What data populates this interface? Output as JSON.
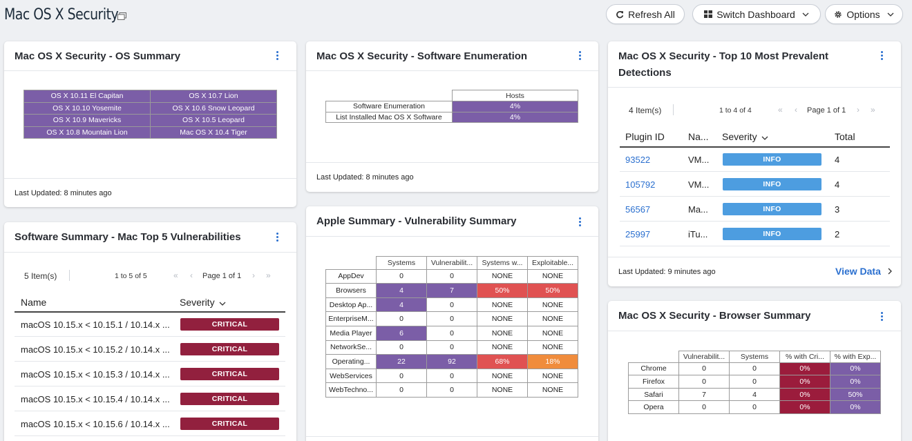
{
  "header": {
    "title": "Mac OS X Security",
    "refresh_label": "Refresh All",
    "switch_label": "Switch Dashboard",
    "options_label": "Options"
  },
  "os_summary": {
    "title": "Mac OS X Security - OS Summary",
    "rows": [
      [
        "OS X 10.11 El Capitan",
        "OS X 10.7 Lion"
      ],
      [
        "OS X 10.10 Yosemite",
        "OS X 10.6 Snow Leopard"
      ],
      [
        "OS X 10.9 Mavericks",
        "OS X 10.5 Leopard"
      ],
      [
        "OS X 10.8 Mountain Lion",
        "Mac OS X 10.4 Tiger"
      ]
    ],
    "footer": "Last Updated: 8 minutes ago"
  },
  "software_enum": {
    "title": "Mac OS X Security - Software Enumeration",
    "column": "Hosts",
    "rows": [
      {
        "label": "Software Enumeration",
        "value": "4%"
      },
      {
        "label": "List Installed Mac OS X Software",
        "value": "4%"
      }
    ],
    "footer": "Last Updated: 8 minutes ago"
  },
  "top10": {
    "title_line1": "Mac OS X Security - Top 10 Most Prevalent",
    "title_line2": "Detections",
    "item_count": "4 Item(s)",
    "range": "1 to 4 of 4",
    "page": "Page 1 of 1",
    "columns": [
      "Plugin ID",
      "Na...",
      "Severity",
      "Total"
    ],
    "rows": [
      {
        "id": "93522",
        "name": "VM...",
        "severity": "INFO",
        "total": "4"
      },
      {
        "id": "105792",
        "name": "VM...",
        "severity": "INFO",
        "total": "4"
      },
      {
        "id": "56567",
        "name": "Ma...",
        "severity": "INFO",
        "total": "3"
      },
      {
        "id": "25997",
        "name": "iTu...",
        "severity": "INFO",
        "total": "2"
      }
    ],
    "footer": "Last Updated: 9 minutes ago",
    "view_data": "View Data"
  },
  "sw_summary": {
    "title": "Software Summary - Mac Top 5 Vulnerabilities",
    "item_count": "5 Item(s)",
    "range": "1 to 5 of 5",
    "page": "Page 1 of 1",
    "columns": [
      "Name",
      "Severity"
    ],
    "rows": [
      {
        "name": "macOS 10.15.x < 10.15.1 / 10.14.x ...",
        "severity": "CRITICAL"
      },
      {
        "name": "macOS 10.15.x < 10.15.2 / 10.14.x ...",
        "severity": "CRITICAL"
      },
      {
        "name": "macOS 10.15.x < 10.15.3 / 10.14.x ...",
        "severity": "CRITICAL"
      },
      {
        "name": "macOS 10.15.x < 10.15.4 / 10.14.x ...",
        "severity": "CRITICAL"
      },
      {
        "name": "macOS 10.15.x < 10.15.6 / 10.14.x ...",
        "severity": "CRITICAL"
      }
    ]
  },
  "apple_summary": {
    "title": "Apple Summary - Vulnerability Summary",
    "columns": [
      "Systems",
      "Vulnerabilit...",
      "Systems w...",
      "Exploitable..."
    ],
    "rows": [
      {
        "label": "AppDev",
        "cells": [
          [
            "0",
            "w"
          ],
          [
            "0",
            "w"
          ],
          [
            "NONE",
            "w"
          ],
          [
            "NONE",
            "w"
          ]
        ]
      },
      {
        "label": "Browsers",
        "cells": [
          [
            "4",
            "p"
          ],
          [
            "7",
            "p"
          ],
          [
            "50%",
            "r"
          ],
          [
            "50%",
            "r"
          ]
        ]
      },
      {
        "label": "Desktop Ap...",
        "cells": [
          [
            "4",
            "p"
          ],
          [
            "0",
            "w"
          ],
          [
            "NONE",
            "w"
          ],
          [
            "NONE",
            "w"
          ]
        ]
      },
      {
        "label": "EnterpriseM...",
        "cells": [
          [
            "0",
            "w"
          ],
          [
            "0",
            "w"
          ],
          [
            "NONE",
            "w"
          ],
          [
            "NONE",
            "w"
          ]
        ]
      },
      {
        "label": "Media Player",
        "cells": [
          [
            "6",
            "p"
          ],
          [
            "0",
            "w"
          ],
          [
            "NONE",
            "w"
          ],
          [
            "NONE",
            "w"
          ]
        ]
      },
      {
        "label": "NetworkSe...",
        "cells": [
          [
            "0",
            "w"
          ],
          [
            "0",
            "w"
          ],
          [
            "NONE",
            "w"
          ],
          [
            "NONE",
            "w"
          ]
        ]
      },
      {
        "label": "Operating...",
        "cells": [
          [
            "22",
            "p"
          ],
          [
            "92",
            "p"
          ],
          [
            "68%",
            "r"
          ],
          [
            "18%",
            "o"
          ]
        ]
      },
      {
        "label": "WebServices",
        "cells": [
          [
            "0",
            "w"
          ],
          [
            "0",
            "w"
          ],
          [
            "NONE",
            "w"
          ],
          [
            "NONE",
            "w"
          ]
        ]
      },
      {
        "label": "WebTechno...",
        "cells": [
          [
            "0",
            "w"
          ],
          [
            "0",
            "w"
          ],
          [
            "NONE",
            "w"
          ],
          [
            "NONE",
            "w"
          ]
        ]
      }
    ]
  },
  "browser_summary": {
    "title": "Mac OS X Security - Browser Summary",
    "columns": [
      "Vulnerabilit...",
      "Systems",
      "% with Cri...",
      "% with Exp..."
    ],
    "rows": [
      {
        "label": "Chrome",
        "cells": [
          [
            "0",
            "w"
          ],
          [
            "0",
            "w"
          ],
          [
            "0%",
            "m"
          ],
          [
            "0%",
            "p"
          ]
        ]
      },
      {
        "label": "Firefox",
        "cells": [
          [
            "0",
            "w"
          ],
          [
            "0",
            "w"
          ],
          [
            "0%",
            "m"
          ],
          [
            "0%",
            "p"
          ]
        ]
      },
      {
        "label": "Safari",
        "cells": [
          [
            "7",
            "w"
          ],
          [
            "4",
            "w"
          ],
          [
            "0%",
            "m"
          ],
          [
            "50%",
            "p"
          ]
        ]
      },
      {
        "label": "Opera",
        "cells": [
          [
            "0",
            "w"
          ],
          [
            "0",
            "w"
          ],
          [
            "0%",
            "m"
          ],
          [
            "0%",
            "p"
          ]
        ]
      }
    ]
  },
  "colors": {
    "purple": "#7b5ea7",
    "red": "#e05252",
    "orange": "#f08c3c",
    "maroon": "#9b1c3c",
    "info_blue": "#4d9de0",
    "critical": "#92203e",
    "link": "#2a6fcf"
  }
}
